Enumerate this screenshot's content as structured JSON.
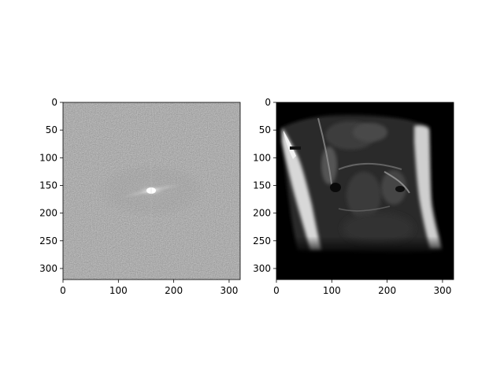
{
  "panels": [
    {
      "name": "k-space",
      "image_kind": "centered Fourier magnitude spectrum (log-scaled, grayscale)",
      "xticks": [
        "0",
        "100",
        "200",
        "300"
      ],
      "yticks": [
        "0",
        "50",
        "100",
        "150",
        "200",
        "250",
        "300"
      ],
      "xlim": [
        0,
        320
      ],
      "ylim": [
        320,
        0
      ]
    },
    {
      "name": "reconstruction",
      "image_kind": "MRI knee cross-section (grayscale)",
      "xticks": [
        "0",
        "100",
        "200",
        "300"
      ],
      "yticks": [
        "0",
        "50",
        "100",
        "150",
        "200",
        "250",
        "300"
      ],
      "xlim": [
        0,
        320
      ],
      "ylim": [
        320,
        0
      ]
    }
  ],
  "colors": {
    "background": "#ffffff",
    "axis": "#000000",
    "colormap": "gray"
  }
}
